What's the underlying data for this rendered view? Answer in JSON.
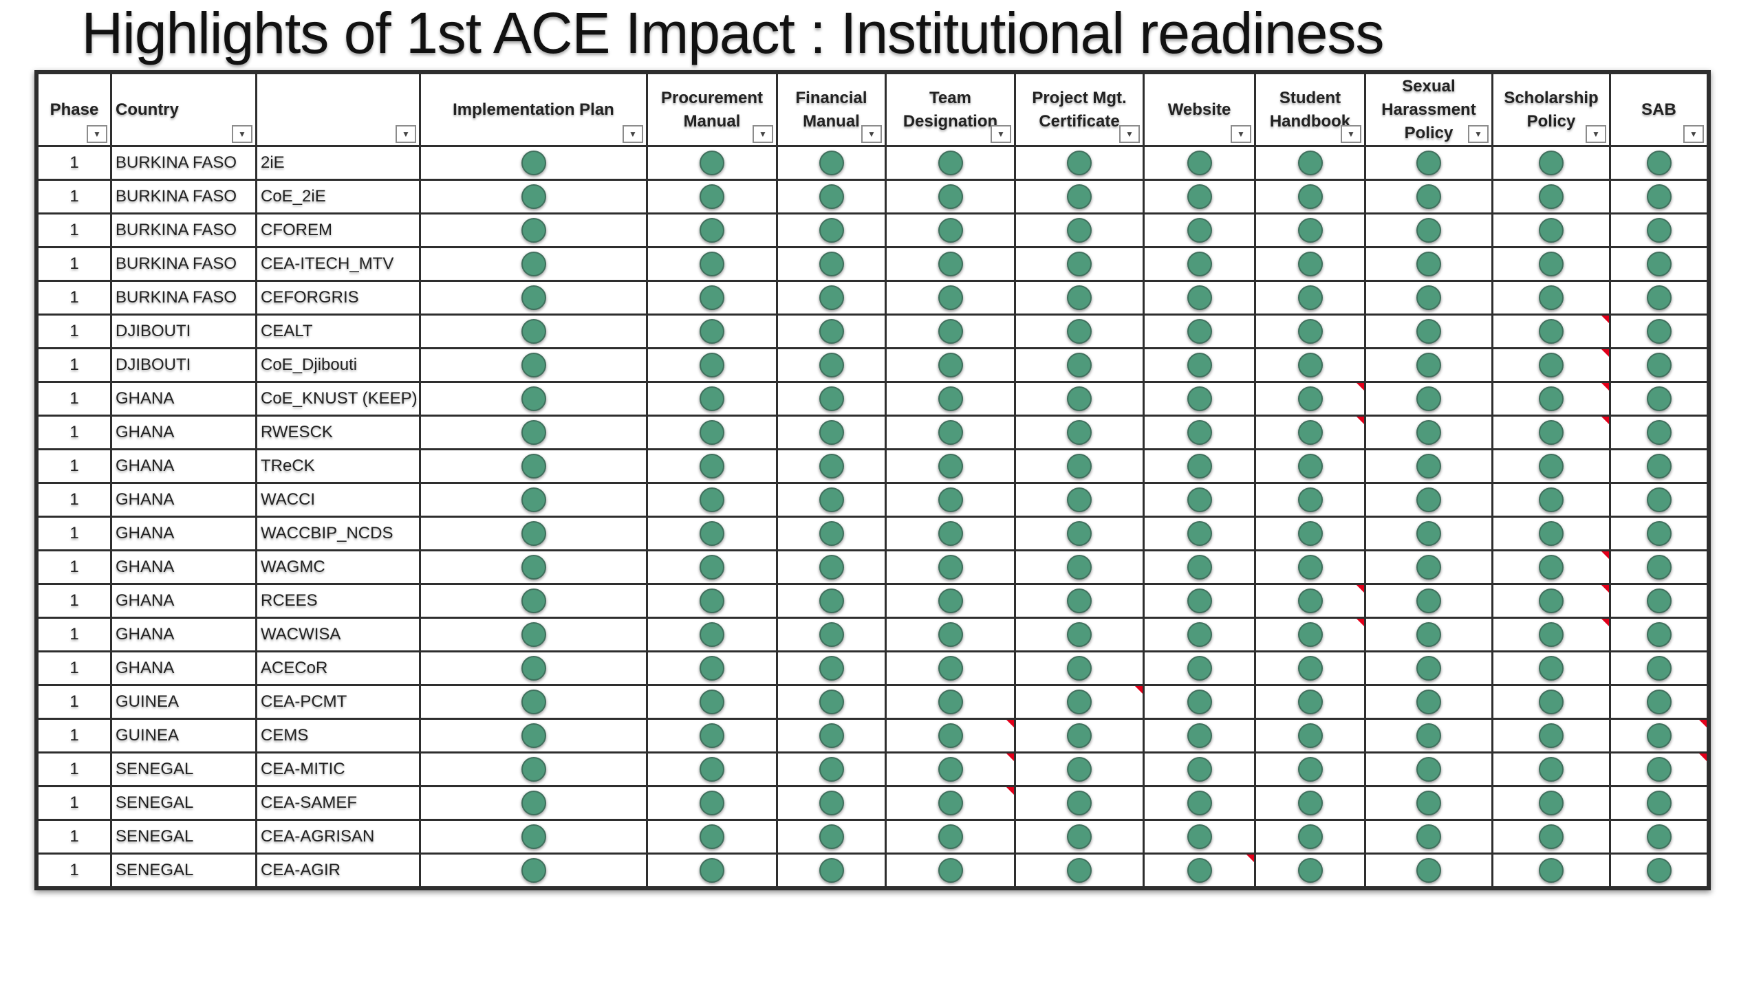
{
  "title": "Highlights of 1st   ACE Impact : Institutional readiness",
  "filter_icon": "filter-dropdown-icon",
  "status_color": "#4f9a7b",
  "comment_marker_color": "#e2001a",
  "columns": [
    {
      "key": "phase",
      "label": "Phase"
    },
    {
      "key": "country",
      "label": "Country"
    },
    {
      "key": "center",
      "label": ""
    },
    {
      "key": "implementation_plan",
      "label": "Implementation Plan"
    },
    {
      "key": "procurement_manual",
      "label": "Procurement Manual"
    },
    {
      "key": "financial_manual",
      "label": "Financial Manual"
    },
    {
      "key": "team_designation",
      "label": "Team Designation"
    },
    {
      "key": "project_mgt_certificate",
      "label": "Project Mgt. Certificate"
    },
    {
      "key": "website",
      "label": "Website"
    },
    {
      "key": "student_handbook",
      "label": "Student Handbook"
    },
    {
      "key": "sexual_harassment_policy",
      "label": "Sexual Harassment Policy"
    },
    {
      "key": "scholarship_policy",
      "label": "Scholarship Policy"
    },
    {
      "key": "sab",
      "label": "SAB"
    }
  ],
  "rows": [
    {
      "phase": "1",
      "country": "BURKINA FASO",
      "center": "2iE",
      "flags": []
    },
    {
      "phase": "1",
      "country": "BURKINA FASO",
      "center": "CoE_2iE",
      "flags": []
    },
    {
      "phase": "1",
      "country": "BURKINA FASO",
      "center": "CFOREM",
      "flags": []
    },
    {
      "phase": "1",
      "country": "BURKINA FASO",
      "center": "CEA-ITECH_MTV",
      "flags": []
    },
    {
      "phase": "1",
      "country": "BURKINA FASO",
      "center": "CEFORGRIS",
      "flags": []
    },
    {
      "phase": "1",
      "country": "DJIBOUTI",
      "center": "CEALT",
      "flags": [
        "scholarship_policy"
      ]
    },
    {
      "phase": "1",
      "country": "DJIBOUTI",
      "center": "CoE_Djibouti",
      "flags": [
        "scholarship_policy"
      ]
    },
    {
      "phase": "1",
      "country": "GHANA",
      "center": "CoE_KNUST (KEEP)",
      "flags": [
        "student_handbook",
        "scholarship_policy"
      ]
    },
    {
      "phase": "1",
      "country": "GHANA",
      "center": "RWESCK",
      "flags": [
        "student_handbook",
        "scholarship_policy"
      ]
    },
    {
      "phase": "1",
      "country": "GHANA",
      "center": "TReCK",
      "flags": []
    },
    {
      "phase": "1",
      "country": "GHANA",
      "center": "WACCI",
      "flags": []
    },
    {
      "phase": "1",
      "country": "GHANA",
      "center": "WACCBIP_NCDS",
      "flags": []
    },
    {
      "phase": "1",
      "country": "GHANA",
      "center": "WAGMC",
      "flags": [
        "scholarship_policy"
      ]
    },
    {
      "phase": "1",
      "country": "GHANA",
      "center": "RCEES",
      "flags": [
        "student_handbook",
        "scholarship_policy"
      ]
    },
    {
      "phase": "1",
      "country": "GHANA",
      "center": "WACWISA",
      "flags": [
        "student_handbook",
        "scholarship_policy"
      ]
    },
    {
      "phase": "1",
      "country": "GHANA",
      "center": "ACECoR",
      "flags": []
    },
    {
      "phase": "1",
      "country": "GUINEA",
      "center": "CEA-PCMT",
      "flags": [
        "project_mgt_certificate"
      ]
    },
    {
      "phase": "1",
      "country": "GUINEA",
      "center": "CEMS",
      "flags": [
        "team_designation",
        "sab"
      ]
    },
    {
      "phase": "1",
      "country": "SENEGAL",
      "center": "CEA-MITIC",
      "flags": [
        "team_designation",
        "sab"
      ]
    },
    {
      "phase": "1",
      "country": "SENEGAL",
      "center": "CEA-SAMEF",
      "flags": [
        "team_designation"
      ]
    },
    {
      "phase": "1",
      "country": "SENEGAL",
      "center": "CEA-AGRISAN",
      "flags": []
    },
    {
      "phase": "1",
      "country": "SENEGAL",
      "center": "CEA-AGIR",
      "flags": [
        "website"
      ]
    }
  ]
}
